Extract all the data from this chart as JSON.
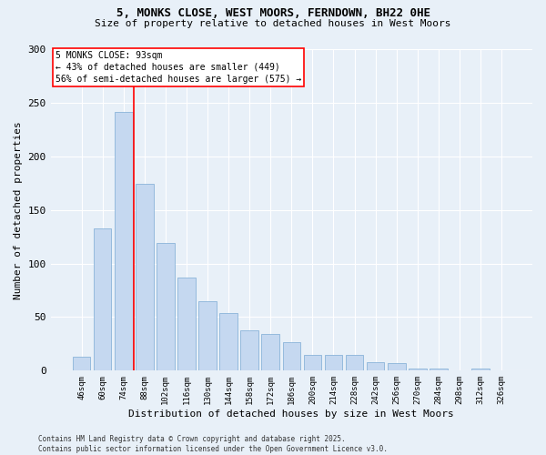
{
  "title_line1": "5, MONKS CLOSE, WEST MOORS, FERNDOWN, BH22 0HE",
  "title_line2": "Size of property relative to detached houses in West Moors",
  "xlabel": "Distribution of detached houses by size in West Moors",
  "ylabel": "Number of detached properties",
  "categories": [
    "46sqm",
    "60sqm",
    "74sqm",
    "88sqm",
    "102sqm",
    "116sqm",
    "130sqm",
    "144sqm",
    "158sqm",
    "172sqm",
    "186sqm",
    "200sqm",
    "214sqm",
    "228sqm",
    "242sqm",
    "256sqm",
    "270sqm",
    "284sqm",
    "298sqm",
    "312sqm",
    "326sqm"
  ],
  "values": [
    13,
    133,
    241,
    174,
    119,
    87,
    65,
    54,
    38,
    34,
    27,
    15,
    15,
    15,
    8,
    7,
    2,
    2,
    0,
    2,
    0
  ],
  "bar_color": "#c5d8f0",
  "bar_edge_color": "#7baad4",
  "background_color": "#e8f0f8",
  "grid_color": "#ffffff",
  "vline_x": 2.5,
  "vline_color": "red",
  "annotation_title": "5 MONKS CLOSE: 93sqm",
  "annotation_line2": "← 43% of detached houses are smaller (449)",
  "annotation_line3": "56% of semi-detached houses are larger (575) →",
  "footer_line1": "Contains HM Land Registry data © Crown copyright and database right 2025.",
  "footer_line2": "Contains public sector information licensed under the Open Government Licence v3.0.",
  "ylim": [
    0,
    300
  ],
  "yticks": [
    0,
    50,
    100,
    150,
    200,
    250,
    300
  ]
}
